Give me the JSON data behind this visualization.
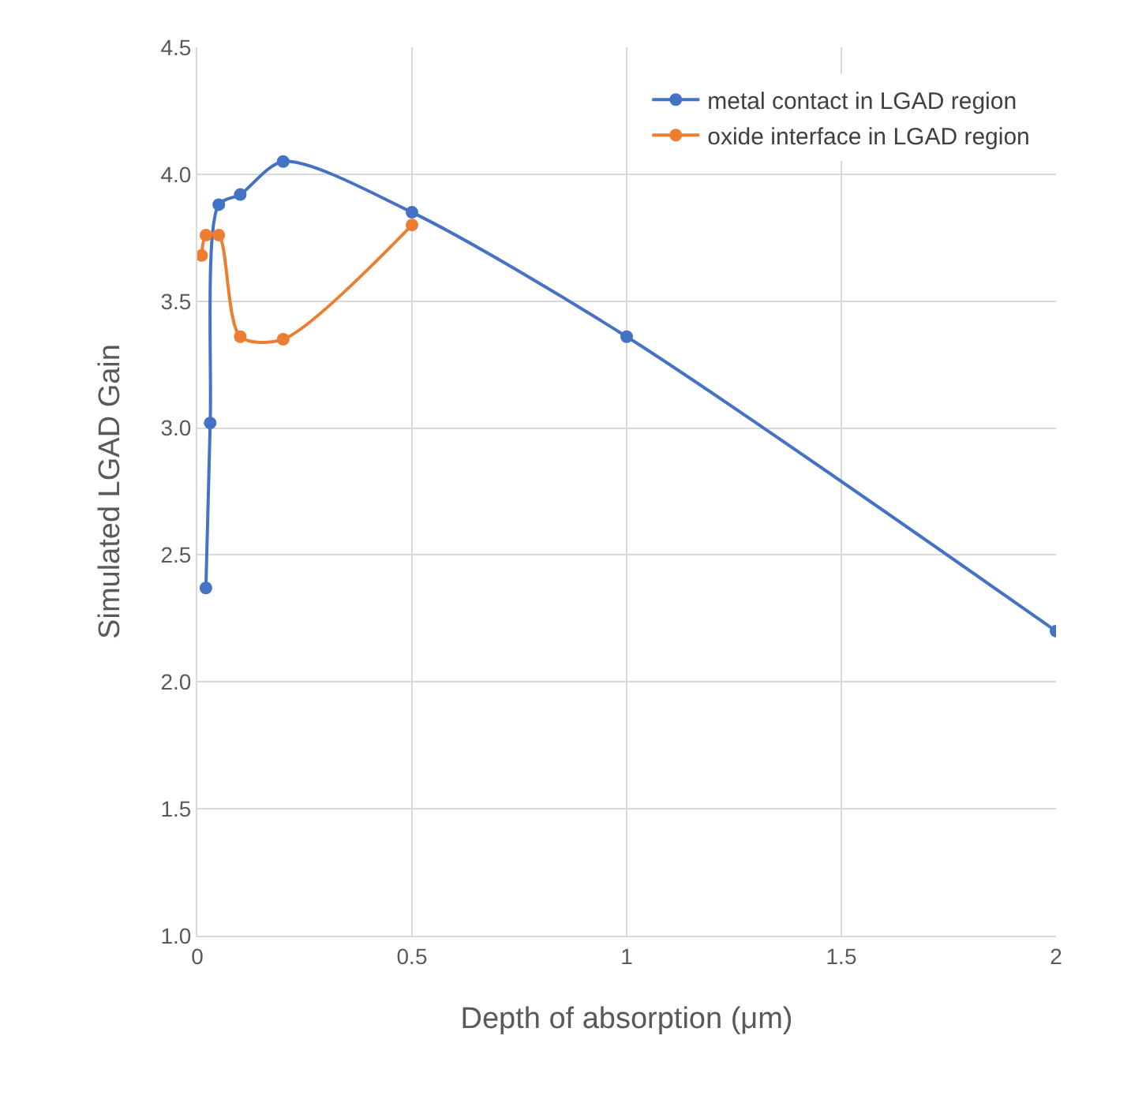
{
  "chart_data": {
    "type": "line",
    "xlabel": "Depth of absorption (μm)",
    "ylabel": "Simulated LGAD Gain",
    "series": [
      {
        "name": "metal contact in LGAD region",
        "color": "#4472c4",
        "x": [
          0.02,
          0.03,
          0.05,
          0.1,
          0.2,
          0.5,
          1,
          2
        ],
        "values": [
          2.37,
          3.02,
          3.88,
          3.92,
          4.05,
          3.85,
          3.36,
          2.2
        ]
      },
      {
        "name": "oxide interface in LGAD region",
        "color": "#ed7d31",
        "x": [
          0.01,
          0.02,
          0.05,
          0.1,
          0.2,
          0.5
        ],
        "values": [
          3.68,
          3.76,
          3.76,
          3.36,
          3.35,
          3.8
        ]
      }
    ],
    "xlim": [
      0,
      2
    ],
    "xticks": [
      0,
      0.5,
      1,
      1.5,
      2
    ],
    "ylim": [
      1,
      4.5
    ],
    "yticks": [
      {
        "value": 1,
        "label": "1.0"
      },
      {
        "value": 1.5,
        "label": "1.5"
      },
      {
        "value": 2,
        "label": "2.0"
      },
      {
        "value": 2.5,
        "label": "2.5"
      },
      {
        "value": 3,
        "label": "3.0"
      },
      {
        "value": 3.5,
        "label": "3.5"
      },
      {
        "value": 4,
        "label": "4.0"
      },
      {
        "value": 4.5,
        "label": "4.5"
      }
    ],
    "grid": true,
    "legend": "top right",
    "marker": "circle",
    "line_style": "solid"
  }
}
